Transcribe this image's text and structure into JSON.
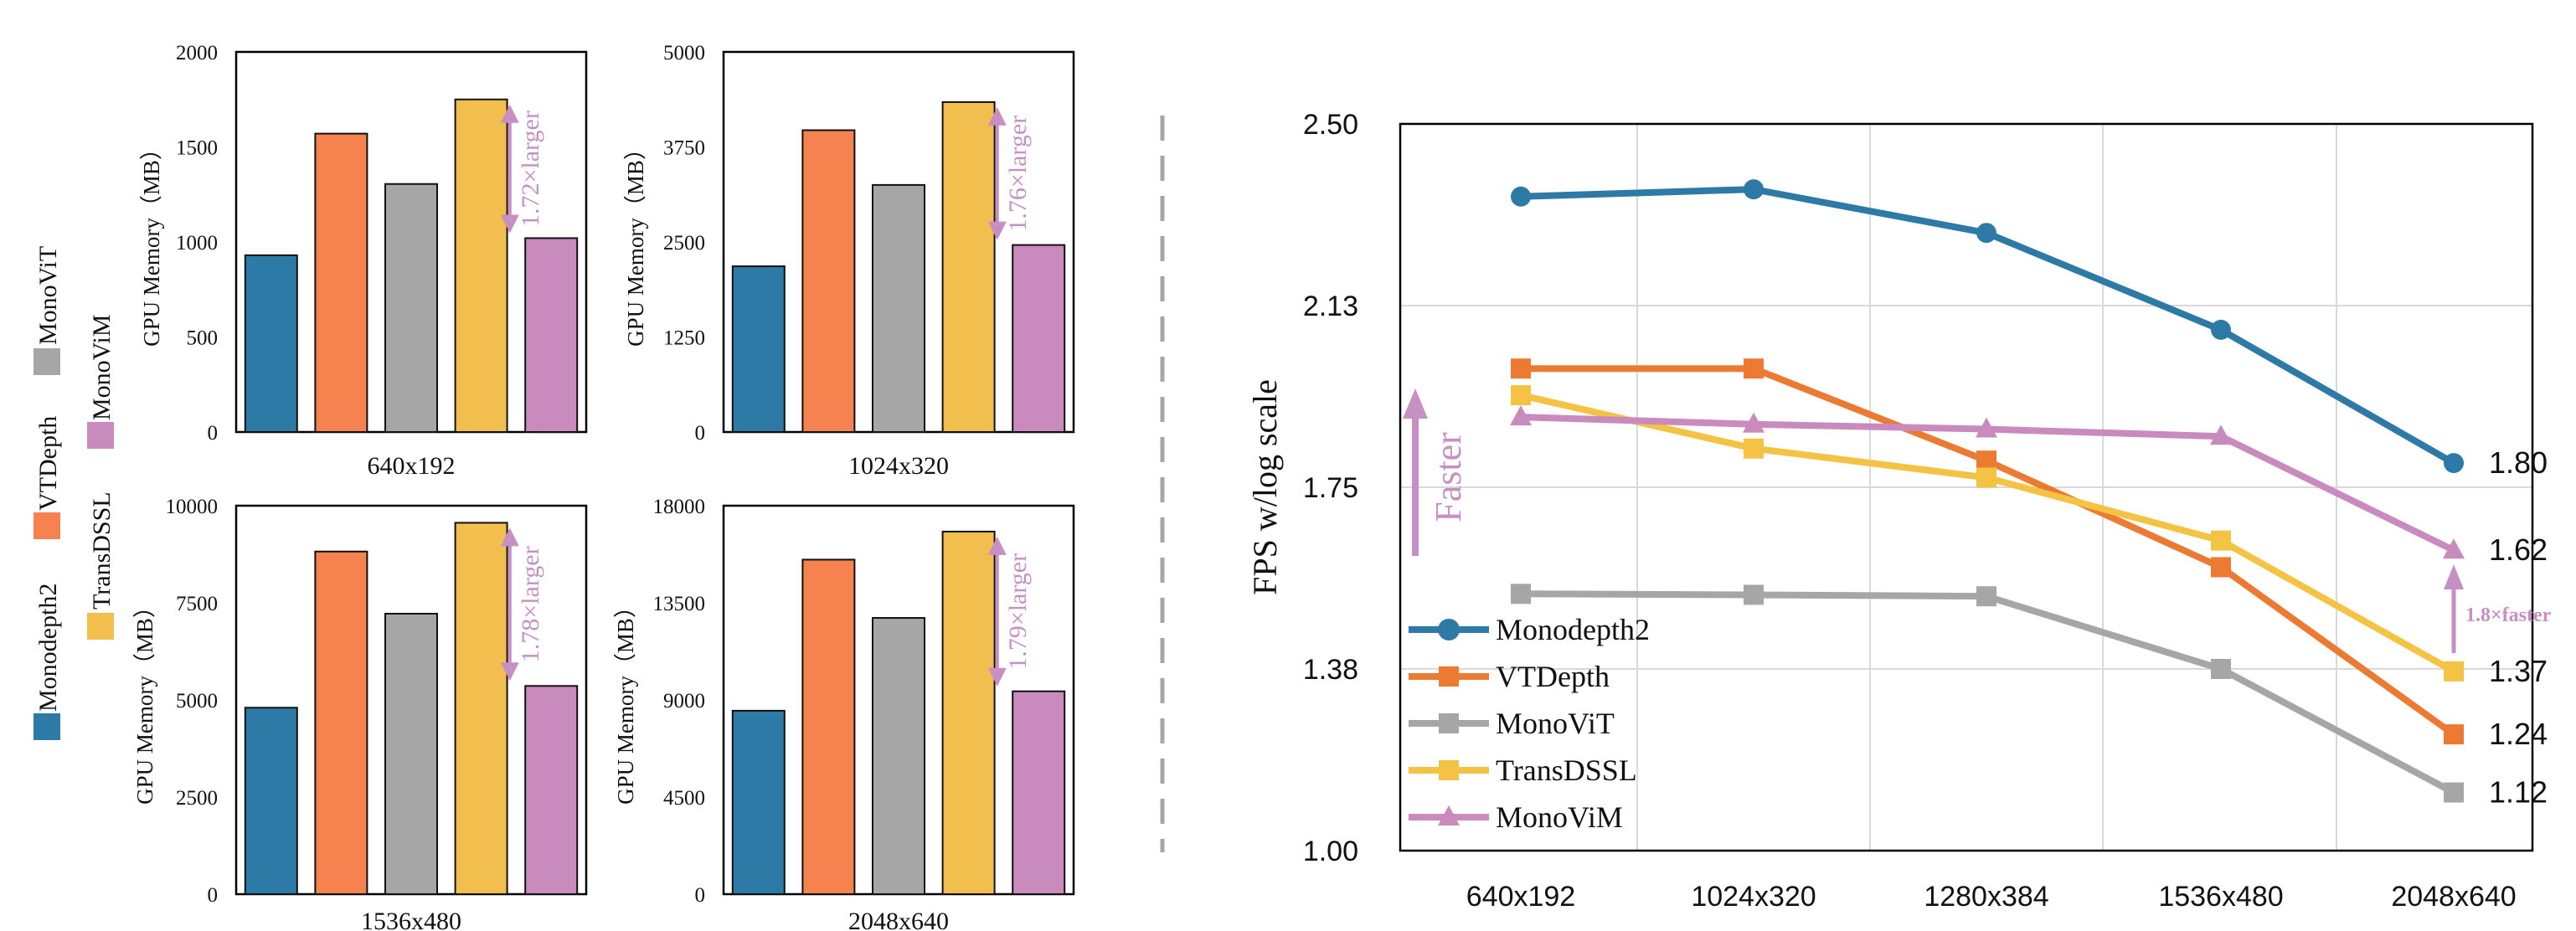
{
  "colors": {
    "Monodepth2": "#2e7aa6",
    "VTDepth": "#f5824f",
    "MonoViT": "#a6a6a6",
    "TransDSSL": "#f2bf4e",
    "MonoViM": "#c98bbd",
    "line_Monodepth2": "#2e7aa6",
    "line_VTDepth": "#ec7a32",
    "line_MonoViT": "#a6a6a6",
    "line_TransDSSL": "#f5c344",
    "line_MonoViM": "#c98bbd",
    "annotation": "#c78fc4",
    "divider": "#a6a6a6"
  },
  "chart_data": [
    {
      "type": "bar",
      "title": "640x192",
      "ylabel": "GPU Memory（MB）",
      "categories": [
        "Monodepth2",
        "VTDepth",
        "MonoViT",
        "TransDSSL",
        "MonoViM"
      ],
      "values": [
        930,
        1570,
        1305,
        1750,
        1020
      ],
      "ylim": [
        0,
        2000
      ],
      "yticks": [
        "0",
        "500",
        "1000",
        "1500",
        "2000"
      ],
      "annotation": "1.72×larger"
    },
    {
      "type": "bar",
      "title": "1024x320",
      "ylabel": "GPU Memory（MB）",
      "categories": [
        "Monodepth2",
        "VTDepth",
        "MonoViT",
        "TransDSSL",
        "MonoViM"
      ],
      "values": [
        2180,
        3970,
        3250,
        4340,
        2460
      ],
      "ylim": [
        0,
        5000
      ],
      "yticks": [
        "0",
        "1250",
        "2500",
        "3750",
        "5000"
      ],
      "annotation": "1.76×larger"
    },
    {
      "type": "bar",
      "title": "1536x480",
      "ylabel": "GPU Memory（MB）",
      "categories": [
        "Monodepth2",
        "VTDepth",
        "MonoViT",
        "TransDSSL",
        "MonoViM"
      ],
      "values": [
        4800,
        8820,
        7220,
        9560,
        5360
      ],
      "ylim": [
        0,
        10000
      ],
      "yticks": [
        "0",
        "2500",
        "5000",
        "7500",
        "10000"
      ],
      "annotation": "1.78×larger"
    },
    {
      "type": "bar",
      "title": "2048x640",
      "ylabel": "GPU Memory（MB）",
      "categories": [
        "Monodepth2",
        "VTDepth",
        "MonoViT",
        "TransDSSL",
        "MonoViM"
      ],
      "values": [
        8500,
        15500,
        12800,
        16800,
        9400
      ],
      "ylim": [
        0,
        18000
      ],
      "yticks": [
        "0",
        "4500",
        "9000",
        "13500",
        "18000"
      ],
      "annotation": "1.79×larger"
    },
    {
      "type": "line",
      "title": "",
      "xlabel": "",
      "ylabel": "FPS w/log scale",
      "categories": [
        "640x192",
        "1024x320",
        "1280x384",
        "1536x480",
        "2048x640"
      ],
      "ylim": [
        1.0,
        2.5
      ],
      "yticks": [
        "1.00",
        "1.38",
        "1.75",
        "2.13",
        "2.50"
      ],
      "grid": true,
      "legend_position": "bottom-left",
      "series": [
        {
          "name": "Monodepth2",
          "marker": "circle",
          "values": [
            2.35,
            2.365,
            2.275,
            2.075,
            1.8
          ],
          "end_label": "1.80"
        },
        {
          "name": "VTDepth",
          "marker": "square",
          "values": [
            1.995,
            1.995,
            1.805,
            1.585,
            1.24
          ],
          "end_label": "1.24"
        },
        {
          "name": "MonoViT",
          "marker": "square",
          "values": [
            1.53,
            1.528,
            1.525,
            1.375,
            1.12
          ],
          "end_label": "1.12"
        },
        {
          "name": "TransDSSL",
          "marker": "square",
          "values": [
            1.94,
            1.83,
            1.77,
            1.64,
            1.37
          ],
          "end_label": "1.37"
        },
        {
          "name": "MonoViM",
          "marker": "triangle",
          "values": [
            1.895,
            1.88,
            1.87,
            1.855,
            1.62
          ],
          "end_label": "1.62"
        }
      ],
      "annotations": {
        "faster": "Faster",
        "speedup": "1.8×faster"
      }
    }
  ],
  "legend": {
    "items": [
      "Monodepth2",
      "TransDSSL",
      "VTDepth",
      "MonoViM",
      "MonoViT"
    ]
  }
}
